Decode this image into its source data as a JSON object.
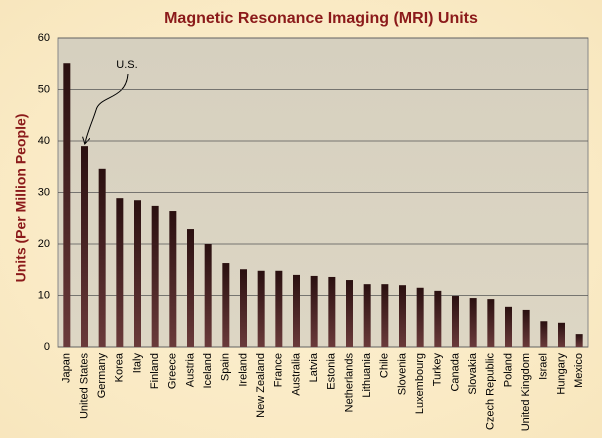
{
  "chart_data": {
    "type": "bar",
    "title": "Magnetic Resonance Imaging (MRI) Units",
    "y_label": "Units (Per Million People)",
    "annotation": "U.S.",
    "categories": [
      "Japan",
      "United States",
      "Germany",
      "Korea",
      "Italy",
      "Finland",
      "Greece",
      "Austria",
      "Iceland",
      "Spain",
      "Ireland",
      "New Zealand",
      "France",
      "Australia",
      "Latvia",
      "Estonia",
      "Netherlands",
      "Lithuania",
      "Chile",
      "Slovenia",
      "Luxembourg",
      "Turkey",
      "Canada",
      "Slovakia",
      "Czech Republic",
      "Poland",
      "United Kingdom",
      "Israel",
      "Hungary",
      "Mexico"
    ],
    "values": [
      55.1,
      39.0,
      34.6,
      28.9,
      28.5,
      27.4,
      26.4,
      22.9,
      20.0,
      16.3,
      15.1,
      14.8,
      14.8,
      14.0,
      13.8,
      13.6,
      13.0,
      12.2,
      12.2,
      12.0,
      11.5,
      10.9,
      9.9,
      9.5,
      9.3,
      7.8,
      7.2,
      5.0,
      4.7,
      2.5
    ],
    "color": "#2a1010",
    "ylim": [
      0,
      60
    ],
    "yticks": [
      0,
      10,
      20,
      30,
      40,
      50,
      60
    ],
    "grid": true
  }
}
